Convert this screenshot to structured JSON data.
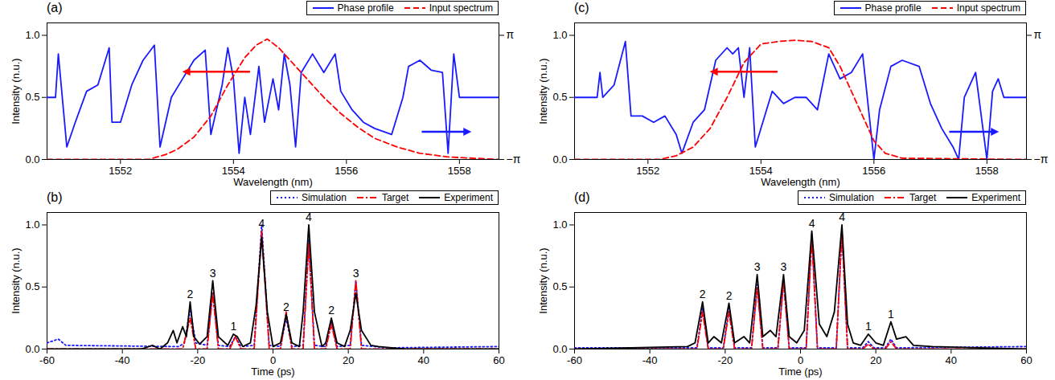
{
  "chart_data": [
    {
      "type": "line",
      "title": "(a)",
      "xlabel": "Wavelength (nm)",
      "ylabel": "Intensity (n.u.)",
      "xlim": [
        1550.7,
        1558.7
      ],
      "xticks": [
        1552,
        1554,
        1556,
        1558
      ],
      "ylim": [
        0,
        1.1
      ],
      "yticks": [
        {
          "value": 0,
          "label": "0.0"
        },
        {
          "value": 0.5,
          "label": "0.5"
        },
        {
          "value": 1,
          "label": "1.0"
        }
      ],
      "y2lim": [
        -3.14159,
        3.76991
      ],
      "y2ticks": [
        {
          "value": 3.14159,
          "label": "π"
        },
        {
          "value": -3.14159,
          "label": "−π"
        }
      ],
      "legend": "top-right",
      "series": [
        {
          "name": "Phase profile",
          "axis": "y2",
          "color": "#1a1aff",
          "line_style": "solid",
          "x": [
            1550.7,
            1550.85,
            1550.9,
            1551.0,
            1551.05,
            1551.2,
            1551.4,
            1551.6,
            1551.8,
            1551.85,
            1552.0,
            1552.2,
            1552.4,
            1552.6,
            1552.7,
            1552.9,
            1553.1,
            1553.3,
            1553.5,
            1553.6,
            1553.8,
            1553.9,
            1554.0,
            1554.1,
            1554.2,
            1554.3,
            1554.45,
            1554.55,
            1554.7,
            1554.8,
            1554.9,
            1555.0,
            1555.1,
            1555.2,
            1555.4,
            1555.6,
            1555.8,
            1555.9,
            1556.1,
            1556.3,
            1556.5,
            1556.8,
            1557.0,
            1557.1,
            1557.3,
            1557.5,
            1557.7,
            1557.8,
            1557.9,
            1558.0,
            1558.7
          ],
          "values": [
            0,
            0,
            2.2,
            -0.94,
            -2.51,
            -1.26,
            0.31,
            0.63,
            2.51,
            -1.26,
            -1.26,
            0.63,
            1.88,
            2.64,
            -2.51,
            0,
            0.94,
            1.88,
            2.39,
            -1.88,
            0.63,
            2.51,
            0.94,
            -2.83,
            0,
            -1.88,
            1.57,
            -1.26,
            0.94,
            -0.63,
            2.2,
            0.63,
            -2.51,
            1.26,
            2.2,
            1.26,
            2.2,
            0.31,
            -0.63,
            -1.26,
            -1.57,
            -1.88,
            0,
            1.57,
            1.88,
            1.38,
            1.26,
            -2.83,
            2.2,
            0,
            0
          ]
        },
        {
          "name": "Input spectrum",
          "color": "#ff0000",
          "line_style": "dashed",
          "x": [
            1550.7,
            1552.5,
            1552.8,
            1553.0,
            1553.3,
            1553.6,
            1553.9,
            1554.2,
            1554.4,
            1554.6,
            1554.8,
            1555.0,
            1555.3,
            1555.6,
            1555.9,
            1556.2,
            1556.5,
            1556.9,
            1557.3,
            1557.8,
            1558.7
          ],
          "values": [
            0,
            0,
            0.04,
            0.08,
            0.18,
            0.35,
            0.6,
            0.82,
            0.92,
            0.97,
            0.9,
            0.8,
            0.65,
            0.5,
            0.37,
            0.26,
            0.17,
            0.1,
            0.05,
            0.02,
            0
          ]
        }
      ]
    },
    {
      "type": "line",
      "title": "(c)",
      "xlabel": "Wavelength (nm)",
      "ylabel": "Intensity (n.u.)",
      "xlim": [
        1550.7,
        1558.7
      ],
      "xticks": [
        1552,
        1554,
        1556,
        1558
      ],
      "ylim": [
        0,
        1.1
      ],
      "yticks": [
        {
          "value": 0,
          "label": "0.0"
        },
        {
          "value": 0.5,
          "label": "0.5"
        },
        {
          "value": 1,
          "label": "1.0"
        }
      ],
      "y2lim": [
        -3.14159,
        3.76991
      ],
      "y2ticks": [
        {
          "value": 3.14159,
          "label": "π"
        },
        {
          "value": -3.14159,
          "label": "−π"
        }
      ],
      "legend": "top-right",
      "series": [
        {
          "name": "Phase profile",
          "axis": "y2",
          "color": "#1a1aff",
          "line_style": "solid",
          "x": [
            1550.7,
            1551.1,
            1551.15,
            1551.2,
            1551.4,
            1551.6,
            1551.7,
            1551.9,
            1552.1,
            1552.3,
            1552.5,
            1552.6,
            1552.8,
            1553.0,
            1553.2,
            1553.4,
            1553.5,
            1553.6,
            1553.7,
            1553.8,
            1553.9,
            1554.0,
            1554.2,
            1554.4,
            1554.6,
            1554.8,
            1555.0,
            1555.2,
            1555.4,
            1555.6,
            1555.8,
            1556.0,
            1556.1,
            1556.3,
            1556.5,
            1556.8,
            1557.0,
            1557.2,
            1557.4,
            1557.5,
            1557.6,
            1557.8,
            1558.0,
            1558.1,
            1558.2,
            1558.3,
            1558.7
          ],
          "values": [
            0,
            0,
            1.26,
            0,
            0.63,
            2.83,
            -0.94,
            -0.94,
            -1.26,
            -0.94,
            -1.88,
            -2.83,
            -1.26,
            -0.63,
            1.88,
            2.51,
            2.2,
            2.51,
            0,
            2.51,
            -2.51,
            -1.57,
            0.31,
            -0.31,
            0,
            0,
            -0.63,
            2.2,
            0.94,
            1.26,
            2.2,
            -3.14,
            -0.63,
            1.57,
            1.88,
            1.57,
            -0.31,
            -1.57,
            -2.51,
            -3.14,
            0,
            1.26,
            -3.14,
            0.31,
            0.94,
            0,
            0
          ]
        },
        {
          "name": "Input spectrum",
          "color": "#ff0000",
          "line_style": "dashed",
          "x": [
            1550.7,
            1552.2,
            1552.5,
            1552.8,
            1553.1,
            1553.4,
            1553.7,
            1554.0,
            1554.3,
            1554.6,
            1554.9,
            1555.2,
            1555.4,
            1555.6,
            1555.8,
            1556.0,
            1556.2,
            1556.5,
            1558.7
          ],
          "values": [
            0,
            0,
            0.03,
            0.1,
            0.25,
            0.5,
            0.78,
            0.93,
            0.95,
            0.96,
            0.95,
            0.9,
            0.75,
            0.55,
            0.35,
            0.15,
            0.05,
            0.01,
            0
          ]
        }
      ]
    },
    {
      "type": "line",
      "title": "(b)",
      "xlabel": "Time (ps)",
      "ylabel": "Intensity (n.u.)",
      "xlim": [
        -60,
        60
      ],
      "xticks": [
        -60,
        -40,
        -20,
        0,
        20,
        40,
        60
      ],
      "ylim": [
        0,
        1.1
      ],
      "yticks": [
        {
          "value": 0,
          "label": "0.0"
        },
        {
          "value": 0.5,
          "label": "0.5"
        },
        {
          "value": 1,
          "label": "1.0"
        }
      ],
      "legend": "top-right",
      "series": [
        {
          "name": "Simulation",
          "color": "#1a1aff",
          "line_style": "dotted",
          "x": [
            -60,
            -58,
            -57,
            -55,
            -25,
            -23.5,
            -22,
            -20.5,
            -17.5,
            -16,
            -14.5,
            -11.5,
            -10,
            -8.5,
            -5,
            -3,
            -1,
            2,
            3.5,
            5,
            8,
            9.5,
            11,
            14,
            15.5,
            17,
            20.5,
            22,
            23.5,
            30,
            60
          ],
          "values": [
            0.05,
            0.07,
            0.08,
            0.03,
            0.02,
            0.05,
            0.32,
            0.05,
            0.03,
            0.45,
            0.03,
            0.02,
            0.1,
            0.02,
            0.03,
            1.0,
            0.03,
            0.02,
            0.25,
            0.02,
            0.03,
            0.88,
            0.03,
            0.02,
            0.22,
            0.02,
            0.03,
            0.55,
            0.03,
            0.01,
            0.02
          ]
        },
        {
          "name": "Target",
          "color": "#ff0000",
          "line_style": "dashdot",
          "x": [
            -60,
            -24,
            -22,
            -20.5,
            -17.5,
            -16,
            -14.5,
            -11.5,
            -10,
            -8.5,
            -5,
            -3,
            -1,
            2,
            3.5,
            5,
            8,
            9.5,
            11,
            14,
            15.5,
            17,
            20.5,
            22,
            23.5,
            60
          ],
          "values": [
            0,
            0,
            0.25,
            0,
            0,
            0.45,
            0,
            0,
            0.1,
            0,
            0,
            0.95,
            0,
            0,
            0.3,
            0,
            0,
            0.85,
            0,
            0,
            0.2,
            0,
            0,
            0.55,
            0,
            0
          ]
        },
        {
          "name": "Experiment",
          "color": "#000000",
          "line_style": "solid",
          "x": [
            -60,
            -35,
            -32,
            -30,
            -28,
            -26.5,
            -25.5,
            -24,
            -23,
            -22,
            -21,
            -19.5,
            -17.5,
            -16,
            -14.5,
            -12,
            -10.5,
            -9.5,
            -8,
            -6,
            -4.5,
            -3,
            -1.5,
            0,
            2,
            3.5,
            5,
            7,
            8,
            9.5,
            11,
            13,
            14,
            15.5,
            17,
            19,
            20.5,
            22,
            23.5,
            26,
            28,
            35,
            60
          ],
          "values": [
            0,
            0,
            0.03,
            0,
            0.05,
            0.15,
            0.05,
            0.18,
            0.1,
            0.38,
            0.1,
            0.04,
            0.1,
            0.55,
            0.1,
            0.03,
            0.12,
            0.1,
            0.02,
            0.05,
            0.35,
            0.9,
            0.3,
            0.02,
            0.05,
            0.28,
            0.05,
            0.02,
            0.3,
            1.0,
            0.3,
            0.02,
            0.05,
            0.25,
            0.05,
            0.02,
            0.15,
            0.45,
            0.15,
            0.03,
            0.02,
            0,
            0
          ]
        }
      ],
      "annotations": [
        {
          "text": "2",
          "x": -22,
          "y": 0.38
        },
        {
          "text": "3",
          "x": -16,
          "y": 0.55
        },
        {
          "text": "1",
          "x": -10.5,
          "y": 0.12
        },
        {
          "text": "4",
          "x": -3,
          "y": 0.95
        },
        {
          "text": "2",
          "x": 3.5,
          "y": 0.28
        },
        {
          "text": "4",
          "x": 9.5,
          "y": 1.0
        },
        {
          "text": "2",
          "x": 15.5,
          "y": 0.25
        },
        {
          "text": "3",
          "x": 22,
          "y": 0.55
        }
      ]
    },
    {
      "type": "line",
      "title": "(d)",
      "xlabel": "Time (ps)",
      "ylabel": "Intensity (n.u.)",
      "xlim": [
        -60,
        60
      ],
      "xticks": [
        -60,
        -40,
        -20,
        0,
        20,
        40,
        60
      ],
      "ylim": [
        0,
        1.1
      ],
      "yticks": [
        {
          "value": 0,
          "label": "0.0"
        },
        {
          "value": 0.5,
          "label": "0.5"
        },
        {
          "value": 1,
          "label": "1.0"
        }
      ],
      "legend": "top-right",
      "series": [
        {
          "name": "Simulation",
          "color": "#1a1aff",
          "line_style": "dotted",
          "x": [
            -60,
            -27.5,
            -26,
            -24.5,
            -20.5,
            -19,
            -17.5,
            -13,
            -11.5,
            -10,
            -6,
            -4.5,
            -3,
            1.5,
            3,
            4.5,
            9.5,
            11,
            12.5,
            16.5,
            18,
            19.5,
            22.5,
            24,
            25.5,
            60
          ],
          "values": [
            0.01,
            0.01,
            0.33,
            0.01,
            0.01,
            0.33,
            0.01,
            0.01,
            0.52,
            0.01,
            0.01,
            0.55,
            0.01,
            0.01,
            0.93,
            0.01,
            0.01,
            0.95,
            0.01,
            0.01,
            0.06,
            0.01,
            0.01,
            0.08,
            0.01,
            0.02
          ]
        },
        {
          "name": "Target",
          "color": "#ff0000",
          "line_style": "dashdot",
          "x": [
            -60,
            -27.5,
            -26,
            -24.5,
            -20.5,
            -19,
            -17.5,
            -13,
            -11.5,
            -10,
            -6,
            -4.5,
            -3,
            1.5,
            3,
            4.5,
            9.5,
            11,
            12.5,
            16.5,
            18,
            19.5,
            22.5,
            24,
            25.5,
            60
          ],
          "values": [
            0,
            0,
            0.3,
            0,
            0,
            0.3,
            0,
            0,
            0.5,
            0,
            0,
            0.55,
            0,
            0,
            0.9,
            0,
            0,
            0.95,
            0,
            0,
            0.04,
            0,
            0,
            0.06,
            0,
            0
          ]
        },
        {
          "name": "Experiment",
          "color": "#000000",
          "line_style": "solid",
          "x": [
            -60,
            -30,
            -28,
            -26,
            -24.5,
            -23,
            -21,
            -19,
            -17.5,
            -15,
            -13.5,
            -11.5,
            -10,
            -8,
            -6.5,
            -4.5,
            -3,
            -1,
            1,
            3,
            5,
            7,
            9,
            11,
            12.5,
            14,
            16,
            18,
            20,
            22,
            24,
            25.5,
            28,
            30,
            35,
            60
          ],
          "values": [
            0,
            0.02,
            0.05,
            0.38,
            0.05,
            0.1,
            0.05,
            0.37,
            0.05,
            0.1,
            0.05,
            0.6,
            0.1,
            0.15,
            0.1,
            0.6,
            0.1,
            0.05,
            0.15,
            0.95,
            0.2,
            0.1,
            0.3,
            1.0,
            0.2,
            0.05,
            0.03,
            0.12,
            0.05,
            0.03,
            0.22,
            0.08,
            0.1,
            0.03,
            0.02,
            0
          ]
        }
      ],
      "annotations": [
        {
          "text": "2",
          "x": -26,
          "y": 0.38
        },
        {
          "text": "2",
          "x": -19,
          "y": 0.37
        },
        {
          "text": "3",
          "x": -11.5,
          "y": 0.6
        },
        {
          "text": "3",
          "x": -4.5,
          "y": 0.6
        },
        {
          "text": "4",
          "x": 3,
          "y": 0.95
        },
        {
          "text": "4",
          "x": 11,
          "y": 1.0
        },
        {
          "text": "1",
          "x": 18,
          "y": 0.12
        },
        {
          "text": "1",
          "x": 24,
          "y": 0.22
        }
      ]
    }
  ]
}
